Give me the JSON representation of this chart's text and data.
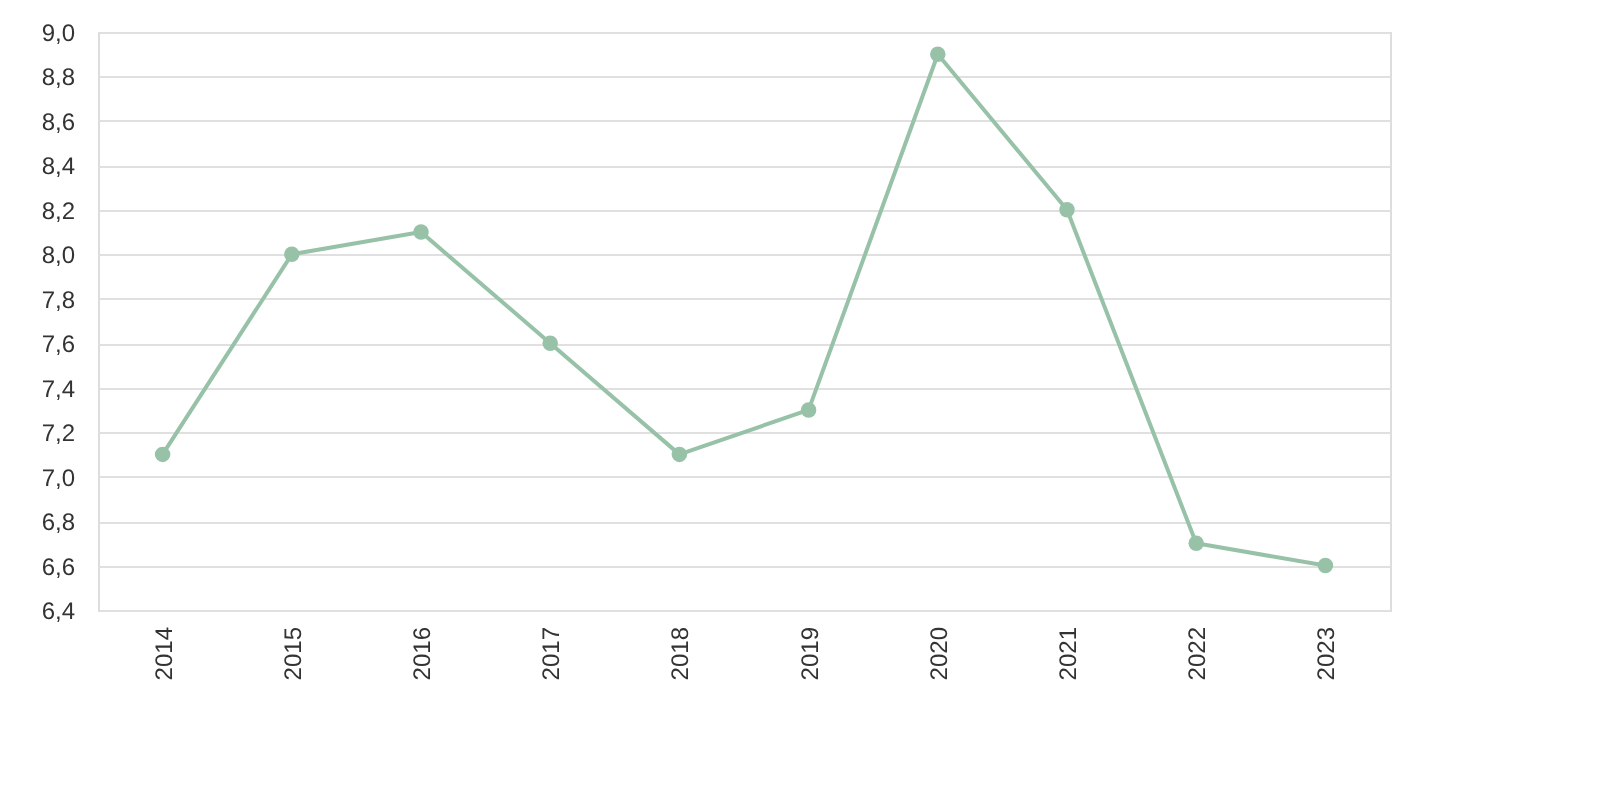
{
  "chart_data": {
    "type": "line",
    "categories": [
      "2014",
      "2015",
      "2016",
      "2017",
      "2018",
      "2019",
      "2020",
      "2021",
      "2022",
      "2023"
    ],
    "series": [
      {
        "color": "#97c2a8",
        "values": [
          7.1,
          8.0,
          8.1,
          7.6,
          7.1,
          7.3,
          8.9,
          8.2,
          6.7,
          6.6
        ]
      }
    ],
    "ylim": [
      6.4,
      9.0
    ],
    "yticks": [
      {
        "value": 6.4,
        "label": "6,4"
      },
      {
        "value": 6.6,
        "label": "6,6"
      },
      {
        "value": 6.8,
        "label": "6,8"
      },
      {
        "value": 7.0,
        "label": "7,0"
      },
      {
        "value": 7.2,
        "label": "7,2"
      },
      {
        "value": 7.4,
        "label": "7,4"
      },
      {
        "value": 7.6,
        "label": "7,6"
      },
      {
        "value": 7.8,
        "label": "7,8"
      },
      {
        "value": 8.0,
        "label": "8,0"
      },
      {
        "value": 8.2,
        "label": "8,2"
      },
      {
        "value": 8.4,
        "label": "8,4"
      },
      {
        "value": 8.6,
        "label": "8,6"
      },
      {
        "value": 8.8,
        "label": "8,8"
      },
      {
        "value": 9.0,
        "label": "9,0"
      }
    ],
    "grid": "y",
    "marker": "circle",
    "line_style": "solid"
  }
}
